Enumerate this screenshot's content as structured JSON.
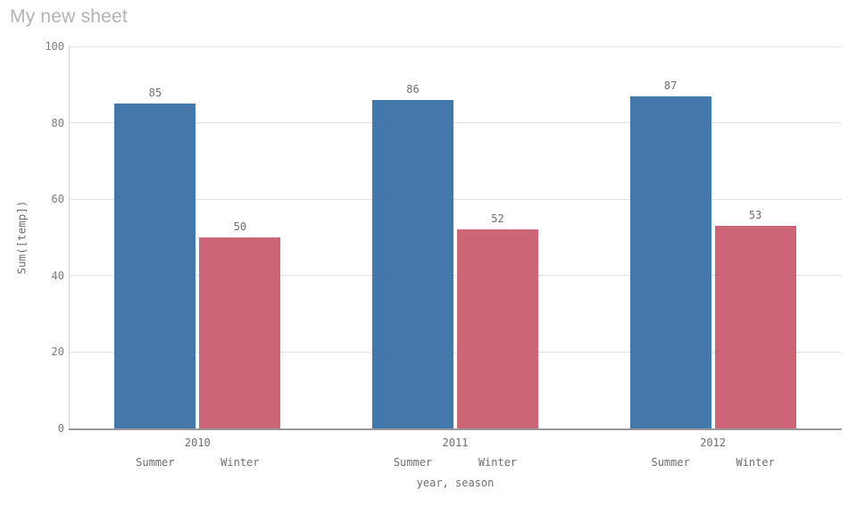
{
  "page": {
    "title": "My new sheet"
  },
  "chart_data": {
    "type": "bar",
    "title": "",
    "categories": [
      "2010",
      "2011",
      "2012"
    ],
    "series": [
      {
        "name": "Summer",
        "color": "#4477aa",
        "values": [
          85,
          86,
          87
        ]
      },
      {
        "name": "Winter",
        "color": "#cc6677",
        "values": [
          50,
          52,
          53
        ]
      }
    ],
    "xlabel": "year, season",
    "ylabel": "Sum([temp])",
    "ylim": [
      0,
      100
    ],
    "yticks": [
      0,
      20,
      40,
      60,
      80,
      100
    ],
    "grid": true,
    "legend_position": "none",
    "value_labels": true,
    "colors": {
      "grid": "#e2e2e2",
      "axis_line": "#d6d6d6",
      "baseline": "#9a9a9a",
      "tick_text": "#7d7d7d",
      "label_text": "#6f6f6f",
      "title_text": "#b3b3b3"
    }
  }
}
